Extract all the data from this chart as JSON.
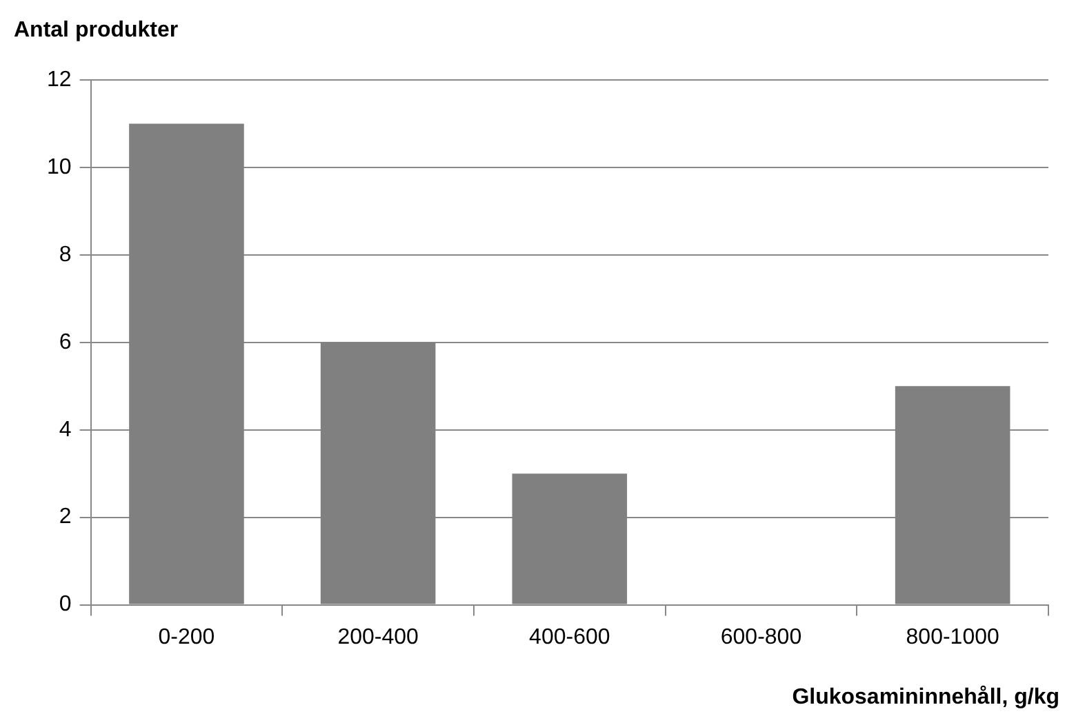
{
  "chart_data": {
    "type": "bar",
    "ylabel": "Antal produkter",
    "xlabel": "Glukosamininnehåll, g/kg",
    "categories": [
      "0-200",
      "200-400",
      "400-600",
      "600-800",
      "800-1000"
    ],
    "values": [
      11,
      6,
      3,
      0,
      5
    ],
    "color": "#808080",
    "ylim": [
      0,
      12
    ],
    "yticks": [
      0,
      2,
      4,
      6,
      8,
      10,
      12
    ],
    "grid": "y"
  }
}
